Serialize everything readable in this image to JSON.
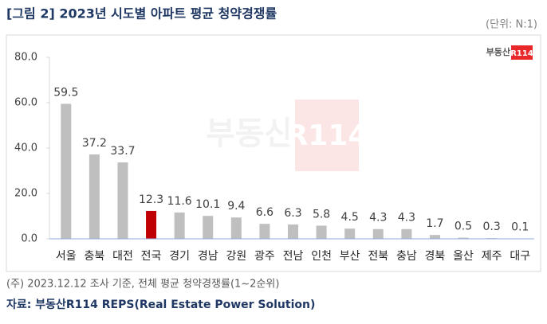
{
  "chart_data": {
    "type": "bar",
    "title": "[그림 2] 2023년 시도별 아파트 평균 청약경쟁률",
    "unit_label": "(단위: N:1)",
    "logo": "부동산",
    "logo_mark": "R114",
    "categories": [
      "서울",
      "충북",
      "대전",
      "전국",
      "경기",
      "경남",
      "강원",
      "광주",
      "전남",
      "인천",
      "부산",
      "전북",
      "충남",
      "경북",
      "울산",
      "제주",
      "대구"
    ],
    "values": [
      59.5,
      37.2,
      33.7,
      12.3,
      11.6,
      10.1,
      9.4,
      6.6,
      6.3,
      5.8,
      4.5,
      4.3,
      4.3,
      1.7,
      0.5,
      0.3,
      0.1
    ],
    "colors": [
      "#bfbfbf",
      "#bfbfbf",
      "#bfbfbf",
      "#c00000",
      "#bfbfbf",
      "#bfbfbf",
      "#bfbfbf",
      "#bfbfbf",
      "#bfbfbf",
      "#bfbfbf",
      "#bfbfbf",
      "#bfbfbf",
      "#bfbfbf",
      "#bfbfbf",
      "#bfbfbf",
      "#bfbfbf",
      "#bfbfbf"
    ],
    "ylim": [
      0,
      80
    ],
    "yticks": [
      {
        "value": 0,
        "label": "0.0"
      },
      {
        "value": 20,
        "label": "20.0"
      },
      {
        "value": 40,
        "label": "40.0"
      },
      {
        "value": 60,
        "label": "60.0"
      },
      {
        "value": 80,
        "label": "80.0"
      }
    ],
    "grid": false,
    "note": "(주) 2023.12.12 조사 기준, 전체 평균 청약경쟁률(1~2순위)",
    "source": "자료: 부동산R114 REPS(Real Estate Power Solution)"
  }
}
